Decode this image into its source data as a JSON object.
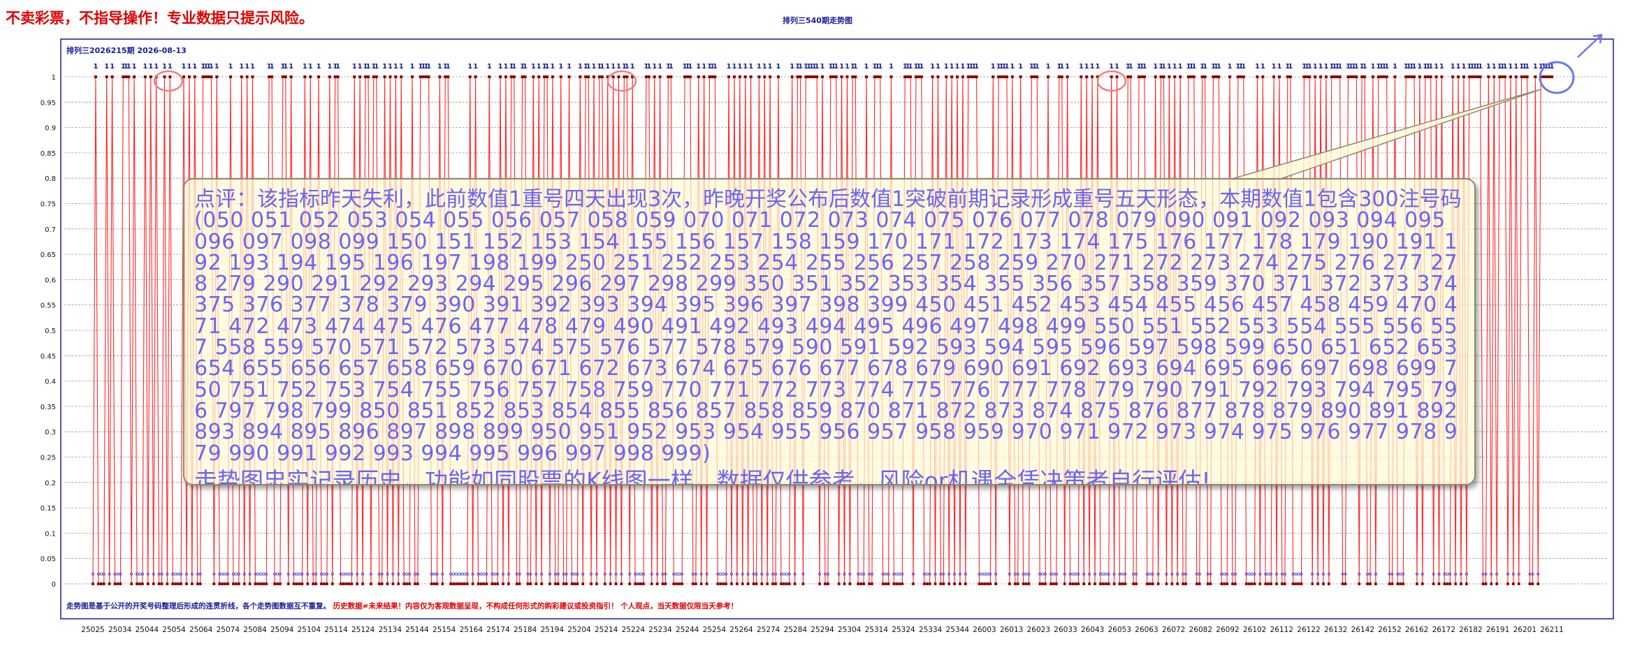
{
  "header": {
    "warning": "不卖彩票，不指导操作！专业数据只提示风险。",
    "title": "排列三540期走势图"
  },
  "chart_data": {
    "type": "line",
    "subtitle": "排列三2026215期  2026-08-13",
    "ylim": [
      0,
      1
    ],
    "yticks": [
      0,
      0.05,
      0.1,
      0.15,
      0.2,
      0.25,
      0.3,
      0.35,
      0.4,
      0.45,
      0.5,
      0.55,
      0.6,
      0.65,
      0.7,
      0.75,
      0.8,
      0.85,
      0.9,
      0.95,
      1
    ],
    "ytick_labels": [
      "0",
      "0.05",
      "0.1",
      "0.15",
      "0.2",
      "0.25",
      "0.3",
      "0.35",
      "0.4",
      "0.45",
      "0.5",
      "0.55",
      "0.6",
      "0.65",
      "0.7",
      "0.75",
      "0.8",
      "0.85",
      "0.9",
      "0.95",
      "1"
    ],
    "xtick_labels": [
      "25025",
      "25034",
      "25044",
      "25054",
      "25064",
      "25074",
      "25084",
      "25094",
      "25104",
      "25114",
      "25124",
      "25134",
      "25144",
      "25154",
      "25164",
      "25174",
      "25184",
      "25194",
      "25204",
      "25214",
      "25224",
      "25234",
      "25244",
      "25254",
      "25264",
      "25274",
      "25284",
      "25294",
      "25304",
      "25314",
      "25324",
      "25334",
      "25344",
      "26003",
      "26013",
      "26023",
      "26033",
      "26043",
      "26053",
      "26063",
      "26072",
      "26082",
      "26092",
      "26102",
      "26112",
      "26122",
      "26132",
      "26142",
      "26152",
      "26162",
      "26172",
      "26182",
      "26191",
      "26201",
      "26211"
    ],
    "values": "010001010001110100010101001010000101010011110100001000101010000011000110100001010010001011000001010110110010101010001001111000101100000001010000100010101100110010101101001001000101101011010101011010000110101001100001110010101110000101010101001010100100001011011111010011101010110001001110001000011101110001010010101010111100000101111010010001110001000110100001010101000010100011001110001011010101001110011001110001001110000101000101001100001110101010111100111101100101111001000111101011101010001010101111100101011101010111001011111",
    "line_color": "#ff0000",
    "marker_color": "#8b0000",
    "zero_marker_color": "#4040cc",
    "grid": true,
    "highlight_circles": 4
  },
  "comment": {
    "intro": "点评：该指标昨天失利，此前数值1重号四天出现3次，昨晚开奖公布后数值1突破前期记录形成重号五天形态，本期数值1包含300注号码",
    "numbers": "(050 051 052 053 054 055 056 057 058 059 070 071 072 073 074 075 076 077 078 079 090 091 092 093 094 095 096 097 098 099 150 151 152 153 154 155 156 157 158 159 170 171 172 173 174 175 176 177 178 179 190 191 192 193 194 195 196 197 198 199 250 251 252 253 254 255 256 257 258 259 270 271 272 273 274 275 276 277 278 279 290 291 292 293 294 295 296 297 298 299 350 351 352 353 354 355 356 357 358 359 370 371 372 373 374 375 376 377 378 379 390 391 392 393 394 395 396 397 398 399 450 451 452 453 454 455 456 457 458 459 470 471 472 473 474 475 476 477 478 479 490 491 492 493 494 495 496 497 498 499 550 551 552 553 554 555 556 557 558 559 570 571 572 573 574 575 576 577 578 579 590 591 592 593 594 595 596 597 598 599 650 651 652 653 654 655 656 657 658 659 670 671 672 673 674 675 676 677 678 679 690 691 692 693 694 695 696 697 698 699 750 751 752 753 754 755 756 757 758 759 770 771 772 773 774 775 776 777 778 779 790 791 792 793 794 795 796 797 798 799 850 851 852 853 854 855 856 857 858 859 870 871 872 873 874 875 876 877 878 879 890 891 892 893 894 895 896 897 898 899 950 951 952 953 954 955 956 957 958 959 970 971 972 973 974 975 976 977 978 979 990 991 992 993 994 995 996 997 998 999)",
    "footer": "走势图忠实记录历史，功能如同股票的K线图一样，数据仅供参考，风险or机遇全凭决策者自行评估!"
  },
  "notes": {
    "part1": "走势图是基于公开的开奖号码整理后形成的连贯折线，各个走势图数据互不重复。",
    "part2": "历史数据≠未来结果！内容仅为客观数据呈现，不构成任何形式的购彩建议或投资指引！",
    "part3": "个人观点，当天数据仅限当天参考！",
    "color1": "#1a1a9a",
    "color2": "#e00000"
  }
}
